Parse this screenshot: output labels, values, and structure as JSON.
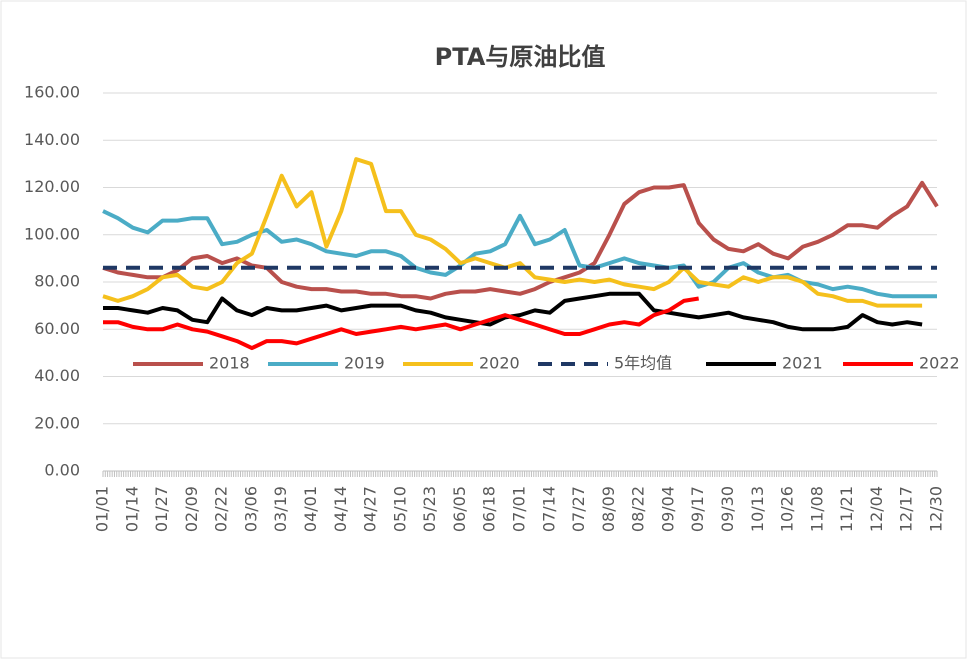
{
  "chart_data": {
    "type": "line",
    "title": "PTA与原油比值",
    "categories": [
      "01/01",
      null,
      "01/14",
      null,
      "01/27",
      null,
      "02/09",
      null,
      "02/22",
      null,
      "03/06",
      null,
      "03/19",
      null,
      "04/01",
      null,
      "04/14",
      null,
      "04/27",
      null,
      "05/10",
      null,
      "05/23",
      null,
      "06/05",
      null,
      "06/18",
      null,
      "07/01",
      null,
      "07/14",
      null,
      "07/27",
      null,
      "08/09",
      null,
      "08/22",
      null,
      "09/04",
      null,
      "09/17",
      null,
      "09/30",
      null,
      "10/13",
      null,
      "10/26",
      null,
      "11/08",
      null,
      "11/21",
      null,
      "12/04",
      null,
      "12/17",
      null,
      "12/30"
    ],
    "ylim": [
      0,
      160
    ],
    "yticks": [
      {
        "value": 0,
        "label": "0.00"
      },
      {
        "value": 20,
        "label": "20.00"
      },
      {
        "value": 40,
        "label": "40.00"
      },
      {
        "value": 60,
        "label": "60.00"
      },
      {
        "value": 80,
        "label": "80.00"
      },
      {
        "value": 100,
        "label": "100.00"
      },
      {
        "value": 120,
        "label": "120.00"
      },
      {
        "value": 140,
        "label": "140.00"
      },
      {
        "value": 160,
        "label": "160.00"
      }
    ],
    "grid": true,
    "series": [
      {
        "name": "2018",
        "color": "#b9504c",
        "values": [
          86,
          84,
          83,
          82,
          82,
          85,
          90,
          91,
          88,
          90,
          87,
          86,
          80,
          78,
          77,
          77,
          76,
          76,
          75,
          75,
          74,
          74,
          73,
          75,
          76,
          76,
          77,
          76,
          75,
          77,
          80,
          82,
          84,
          88,
          100,
          113,
          118,
          120,
          120,
          121,
          105,
          98,
          94,
          93,
          96,
          92,
          90,
          95,
          97,
          100,
          104,
          104,
          103,
          108,
          112,
          122,
          112
        ]
      },
      {
        "name": "2019",
        "color": "#4bacc6",
        "values": [
          110,
          107,
          103,
          101,
          106,
          106,
          107,
          107,
          96,
          97,
          100,
          102,
          97,
          98,
          96,
          93,
          92,
          91,
          93,
          93,
          91,
          86,
          84,
          83,
          87,
          92,
          93,
          96,
          108,
          96,
          98,
          102,
          87,
          86,
          88,
          90,
          88,
          87,
          86,
          87,
          78,
          80,
          86,
          88,
          84,
          82,
          83,
          80,
          79,
          77,
          78,
          77,
          75,
          74,
          74,
          74,
          74
        ]
      },
      {
        "name": "2020",
        "color": "#f5c01c",
        "values": [
          74,
          72,
          74,
          77,
          82,
          83,
          78,
          77,
          80,
          88,
          92,
          108,
          125,
          112,
          118,
          95,
          110,
          132,
          130,
          110,
          110,
          100,
          98,
          94,
          88,
          90,
          88,
          86,
          88,
          82,
          81,
          80,
          81,
          80,
          81,
          79,
          78,
          77,
          80,
          86,
          80,
          79,
          78,
          82,
          80,
          82,
          82,
          80,
          75,
          74,
          72,
          72,
          70,
          70,
          70,
          70,
          null
        ]
      },
      {
        "name": "5年均值",
        "color": "#1f3864",
        "dashed": true,
        "values": [
          86,
          86,
          86,
          86,
          86,
          86,
          86,
          86,
          86,
          86,
          86,
          86,
          86,
          86,
          86,
          86,
          86,
          86,
          86,
          86,
          86,
          86,
          86,
          86,
          86,
          86,
          86,
          86,
          86,
          86,
          86,
          86,
          86,
          86,
          86,
          86,
          86,
          86,
          86,
          86,
          86,
          86,
          86,
          86,
          86,
          86,
          86,
          86,
          86,
          86,
          86,
          86,
          86,
          86,
          86,
          86,
          86
        ]
      },
      {
        "name": "2021",
        "color": "#000000",
        "values": [
          69,
          69,
          68,
          67,
          69,
          68,
          64,
          63,
          73,
          68,
          66,
          69,
          68,
          68,
          69,
          70,
          68,
          69,
          70,
          70,
          70,
          68,
          67,
          65,
          64,
          63,
          62,
          65,
          66,
          68,
          67,
          72,
          73,
          74,
          75,
          75,
          75,
          68,
          67,
          66,
          65,
          66,
          67,
          65,
          64,
          63,
          61,
          60,
          60,
          60,
          61,
          66,
          63,
          62,
          63,
          62,
          null
        ]
      },
      {
        "name": "2022",
        "color": "#ff0000",
        "values": [
          63,
          63,
          61,
          60,
          60,
          62,
          60,
          59,
          57,
          55,
          52,
          55,
          55,
          54,
          56,
          58,
          60,
          58,
          59,
          60,
          61,
          60,
          61,
          62,
          60,
          62,
          64,
          66,
          64,
          62,
          60,
          58,
          58,
          60,
          62,
          63,
          62,
          66,
          68,
          72,
          73,
          null,
          null,
          null,
          null,
          null,
          null,
          null,
          null,
          null,
          null,
          null,
          null,
          null,
          null,
          null,
          null
        ]
      }
    ]
  }
}
